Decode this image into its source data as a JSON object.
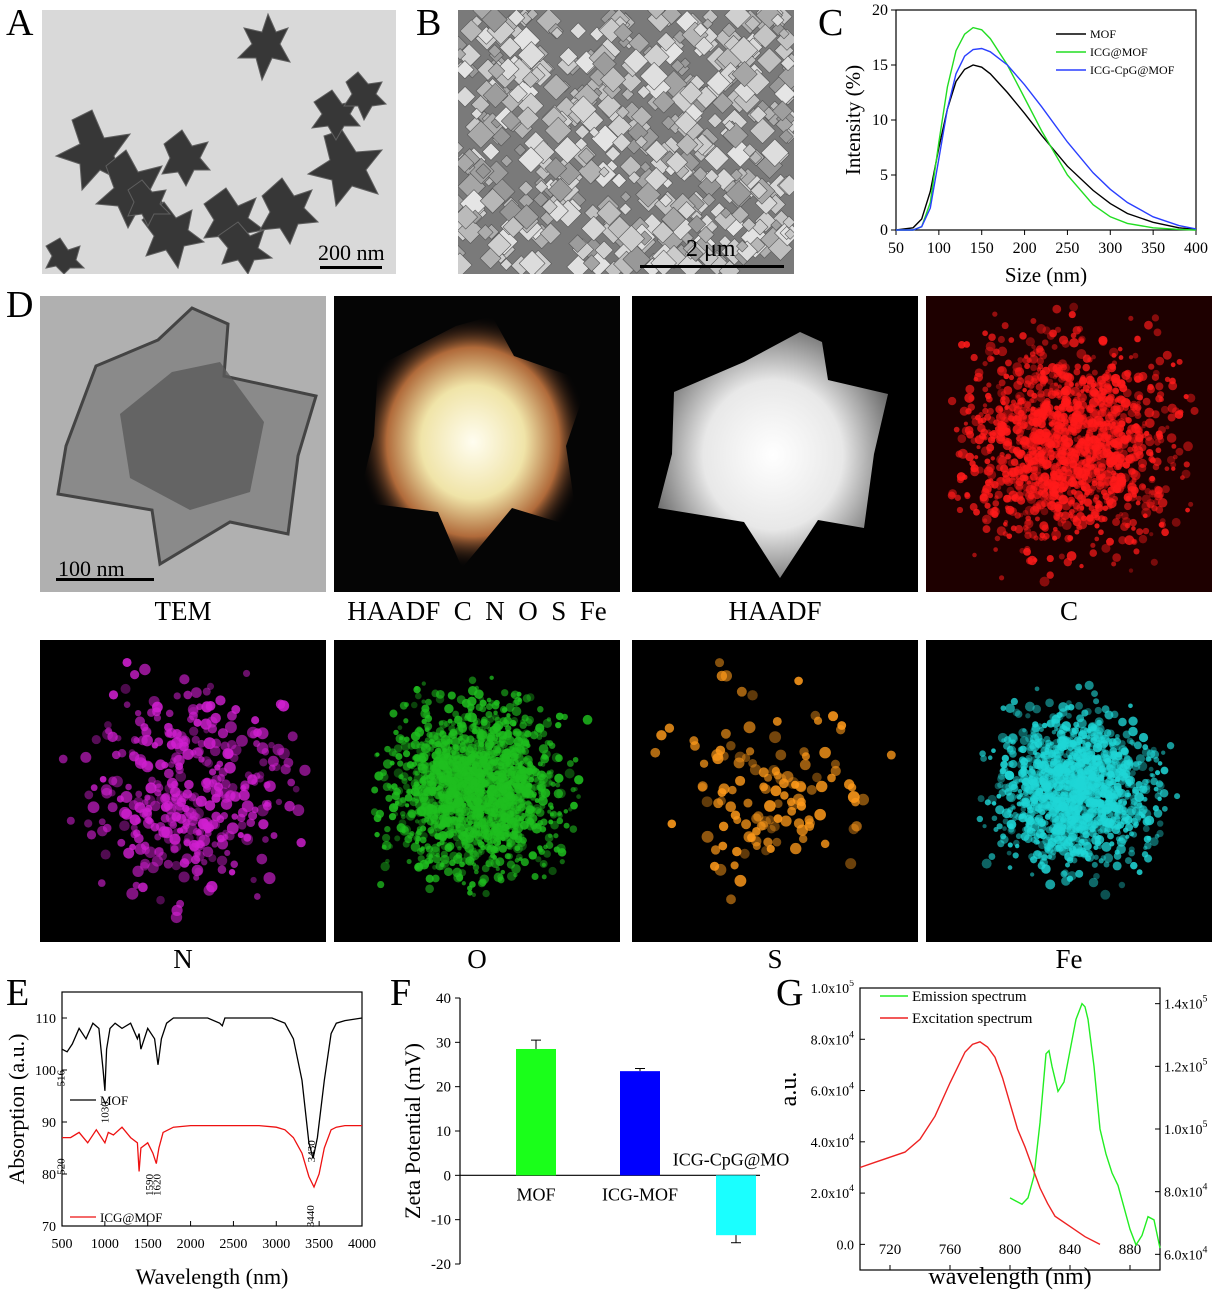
{
  "panels": {
    "A": {
      "label": "A",
      "scale_bar": "200 nm"
    },
    "B": {
      "label": "B",
      "scale_bar": "2 μm"
    },
    "C": {
      "label": "C"
    },
    "D": {
      "label": "D",
      "scale_bar": "100 nm",
      "captions": [
        "TEM",
        "HAADF  C  N  O  S  Fe",
        "HAADF",
        "C",
        "N",
        "O",
        "S",
        "Fe"
      ],
      "colors": {
        "C": "#ff1a1a",
        "N": "#d11fd1",
        "O": "#1fbf1f",
        "S": "#ff9a1a",
        "Fe": "#1fd6d6"
      }
    },
    "E": {
      "label": "E"
    },
    "F": {
      "label": "F"
    },
    "G": {
      "label": "G"
    }
  },
  "chart_data": [
    {
      "id": "C",
      "type": "line",
      "xlabel": "Size (nm)",
      "ylabel": "Intensity (%)",
      "xlim": [
        50,
        400
      ],
      "ylim": [
        0,
        20
      ],
      "xticks": [
        "50",
        "100",
        "150",
        "200",
        "250",
        "300",
        "350",
        "400"
      ],
      "yticks": [
        "0",
        "5",
        "10",
        "15",
        "20"
      ],
      "legend_position": "top-right",
      "series": [
        {
          "name": "MOF",
          "color": "#000000",
          "x": [
            50,
            70,
            80,
            90,
            100,
            110,
            120,
            130,
            140,
            150,
            160,
            180,
            200,
            220,
            250,
            280,
            300,
            320,
            350,
            380,
            400
          ],
          "y": [
            0,
            0.2,
            1,
            3.5,
            7.5,
            11,
            13.5,
            14.6,
            15,
            14.8,
            14.2,
            12.5,
            10.6,
            8.6,
            5.8,
            3.6,
            2.4,
            1.5,
            0.7,
            0.2,
            0.05
          ]
        },
        {
          "name": "ICG@MOF",
          "color": "#22dd22",
          "x": [
            50,
            70,
            80,
            90,
            100,
            110,
            120,
            130,
            140,
            150,
            160,
            180,
            200,
            220,
            250,
            280,
            300,
            320,
            350,
            380,
            400
          ],
          "y": [
            0,
            0,
            0.3,
            2.5,
            8,
            13,
            16.3,
            17.8,
            18.4,
            18.2,
            17.4,
            15,
            12,
            9,
            5,
            2.3,
            1.2,
            0.6,
            0.2,
            0.05,
            0
          ]
        },
        {
          "name": "ICG-CpG@MOF",
          "color": "#2a3fff",
          "x": [
            50,
            70,
            80,
            90,
            100,
            110,
            120,
            130,
            140,
            150,
            160,
            180,
            200,
            220,
            250,
            280,
            300,
            320,
            350,
            380,
            400
          ],
          "y": [
            0,
            0,
            0.3,
            2,
            6.5,
            11,
            14.2,
            15.8,
            16.4,
            16.5,
            16.2,
            15,
            13.2,
            11.2,
            8,
            5.2,
            3.7,
            2.5,
            1.2,
            0.4,
            0.1
          ]
        }
      ]
    },
    {
      "id": "E",
      "type": "line",
      "xlabel": "Wavelength (nm)",
      "ylabel": "Absorption (a.u.)",
      "xlim": [
        500,
        4000
      ],
      "ylim": [
        70,
        115
      ],
      "xticks": [
        "500",
        "1000",
        "1500",
        "2000",
        "2500",
        "3000",
        "3500",
        "4000"
      ],
      "yticks": [
        "70",
        "80",
        "90",
        "100",
        "110"
      ],
      "legend": [
        "MOF",
        "ICG@MOF"
      ],
      "annotations": [
        "516",
        "1030",
        "3430",
        "520",
        "1590",
        "1620",
        "3440"
      ],
      "series": [
        {
          "name": "MOF",
          "color": "#000000",
          "x": [
            500,
            560,
            620,
            700,
            780,
            860,
            930,
            980,
            1000,
            1020,
            1060,
            1120,
            1200,
            1300,
            1380,
            1400,
            1420,
            1500,
            1580,
            1620,
            1660,
            1720,
            1800,
            2000,
            2200,
            2340,
            2370,
            2400,
            2600,
            2800,
            2950,
            3100,
            3200,
            3300,
            3380,
            3430,
            3480,
            3560,
            3640,
            3700,
            3800,
            4000
          ],
          "y": [
            104,
            103.5,
            105,
            108,
            106,
            109,
            108,
            100,
            96,
            104,
            108,
            109,
            108,
            109,
            106,
            107,
            104,
            108,
            106,
            101,
            106,
            109,
            110,
            110,
            110,
            109,
            108.5,
            110,
            110,
            110,
            110,
            109,
            106,
            98,
            86,
            83,
            87,
            98,
            107,
            109,
            109.5,
            110
          ]
        },
        {
          "name": "ICG@MOF",
          "color": "#ee1111",
          "x": [
            500,
            600,
            700,
            800,
            900,
            1000,
            1040,
            1100,
            1200,
            1300,
            1380,
            1400,
            1420,
            1500,
            1560,
            1600,
            1630,
            1680,
            1800,
            2000,
            2400,
            2800,
            3000,
            3100,
            3200,
            3300,
            3380,
            3440,
            3500,
            3560,
            3640,
            3700,
            3800,
            4000
          ],
          "y": [
            87,
            87,
            88,
            86,
            88.5,
            86,
            88,
            87.5,
            89,
            87,
            86,
            80.5,
            85,
            86,
            84,
            82,
            85,
            88,
            89,
            89.3,
            89.3,
            89.3,
            89,
            88.5,
            87,
            84,
            79.5,
            77.5,
            80,
            85,
            88.5,
            89,
            89.3,
            89.3
          ]
        }
      ]
    },
    {
      "id": "F",
      "type": "bar",
      "ylabel": "Zeta Potential (mV)",
      "ylim": [
        -20,
        40
      ],
      "yticks": [
        "-20",
        "-10",
        "0",
        "10",
        "20",
        "30",
        "40"
      ],
      "categories": [
        "MOF",
        "ICG-MOF",
        "ICG-CpG@MOF"
      ],
      "values": [
        28.5,
        23.5,
        -13.5
      ],
      "errors": [
        2,
        0.6,
        1.7
      ],
      "colors": [
        "#1aff1a",
        "#0000ff",
        "#1affff"
      ]
    },
    {
      "id": "G",
      "type": "line",
      "xlabel": "wavelength (nm)",
      "ylabel": "a.u.",
      "xlim": [
        700,
        900
      ],
      "ylim_left": [
        -0.1,
        1.0
      ],
      "ylim_right": [
        0.55,
        1.45
      ],
      "xticks": [
        "720",
        "760",
        "800",
        "840",
        "880"
      ],
      "yticks_left": [
        "0.0",
        "2.0x10^4",
        "4.0x10^4",
        "6.0x10^4",
        "8.0x10^4",
        "1.0x10^5"
      ],
      "yticks_right": [
        "6.0x10^4",
        "8.0x10^4",
        "1.0x10^5",
        "1.2x10^5",
        "1.4x10^5"
      ],
      "series": [
        {
          "name": "Emission spectrum",
          "color": "#22ee22",
          "axis": "right",
          "x": [
            800,
            804,
            808,
            812,
            816,
            820,
            824,
            826,
            828,
            832,
            836,
            840,
            844,
            848,
            850,
            852,
            856,
            860,
            864,
            868,
            872,
            876,
            880,
            884,
            888,
            892,
            896,
            900
          ],
          "y": [
            0.78,
            0.77,
            0.76,
            0.78,
            0.85,
            1.02,
            1.24,
            1.25,
            1.2,
            1.12,
            1.15,
            1.25,
            1.35,
            1.4,
            1.39,
            1.35,
            1.2,
            1.0,
            0.92,
            0.86,
            0.82,
            0.75,
            0.68,
            0.63,
            0.66,
            0.72,
            0.71,
            0.62
          ]
        },
        {
          "name": "Excitation spectrum",
          "color": "#ee2222",
          "axis": "left",
          "x": [
            700,
            710,
            720,
            730,
            740,
            750,
            760,
            770,
            775,
            780,
            785,
            790,
            795,
            800,
            805,
            810,
            815,
            820,
            825,
            830,
            840,
            850,
            860
          ],
          "y": [
            0.3,
            0.32,
            0.34,
            0.36,
            0.41,
            0.5,
            0.63,
            0.75,
            0.78,
            0.79,
            0.77,
            0.73,
            0.65,
            0.55,
            0.45,
            0.38,
            0.3,
            0.22,
            0.16,
            0.11,
            0.07,
            0.03,
            0.0
          ]
        }
      ]
    }
  ]
}
